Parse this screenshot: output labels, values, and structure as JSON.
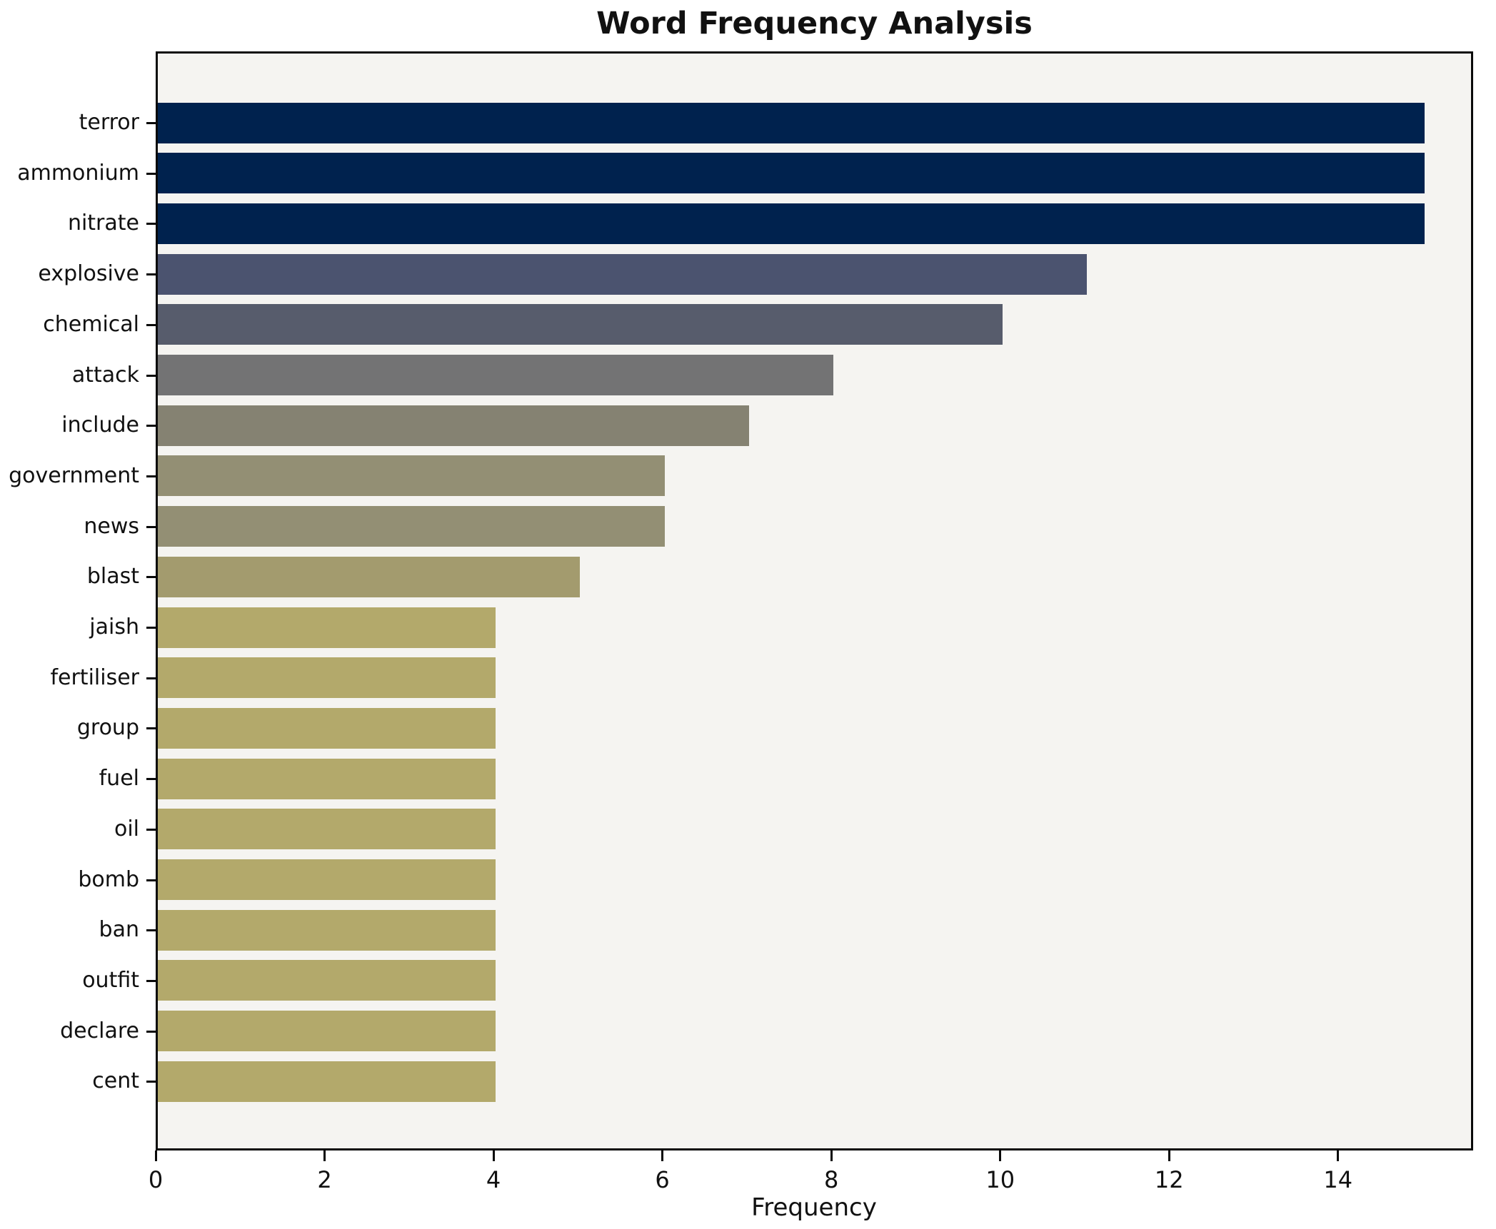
{
  "title": "Word Frequency Analysis",
  "chart_data": {
    "type": "bar",
    "orientation": "horizontal",
    "title": "Word Frequency Analysis",
    "xlabel": "Frequency",
    "ylabel": "",
    "categories": [
      "terror",
      "ammonium",
      "nitrate",
      "explosive",
      "chemical",
      "attack",
      "include",
      "government",
      "news",
      "blast",
      "jaish",
      "fertiliser",
      "group",
      "fuel",
      "oil",
      "bomb",
      "ban",
      "outfit",
      "declare",
      "cent"
    ],
    "values": [
      15,
      15,
      15,
      11,
      10,
      8,
      7,
      6,
      6,
      5,
      4,
      4,
      4,
      4,
      4,
      4,
      4,
      4,
      4,
      4
    ],
    "bar_colors": [
      "#00224e",
      "#00224e",
      "#00224e",
      "#4b536f",
      "#575c6c",
      "#737374",
      "#858272",
      "#938f74",
      "#938f74",
      "#a39b6e",
      "#b3a96b",
      "#b3a96b",
      "#b3a96b",
      "#b3a96b",
      "#b3a96b",
      "#b3a96b",
      "#b3a96b",
      "#b3a96b",
      "#b3a96b",
      "#b3a96b"
    ],
    "xlim": [
      0,
      15.6
    ],
    "x_ticks": [
      0,
      2,
      4,
      6,
      8,
      10,
      12,
      14
    ],
    "grid": false,
    "legend": null,
    "plot_background": "#f5f4f1",
    "figure_background": "#ffffff",
    "spine_color": "#0a0a0a",
    "text_color": "#111111"
  }
}
